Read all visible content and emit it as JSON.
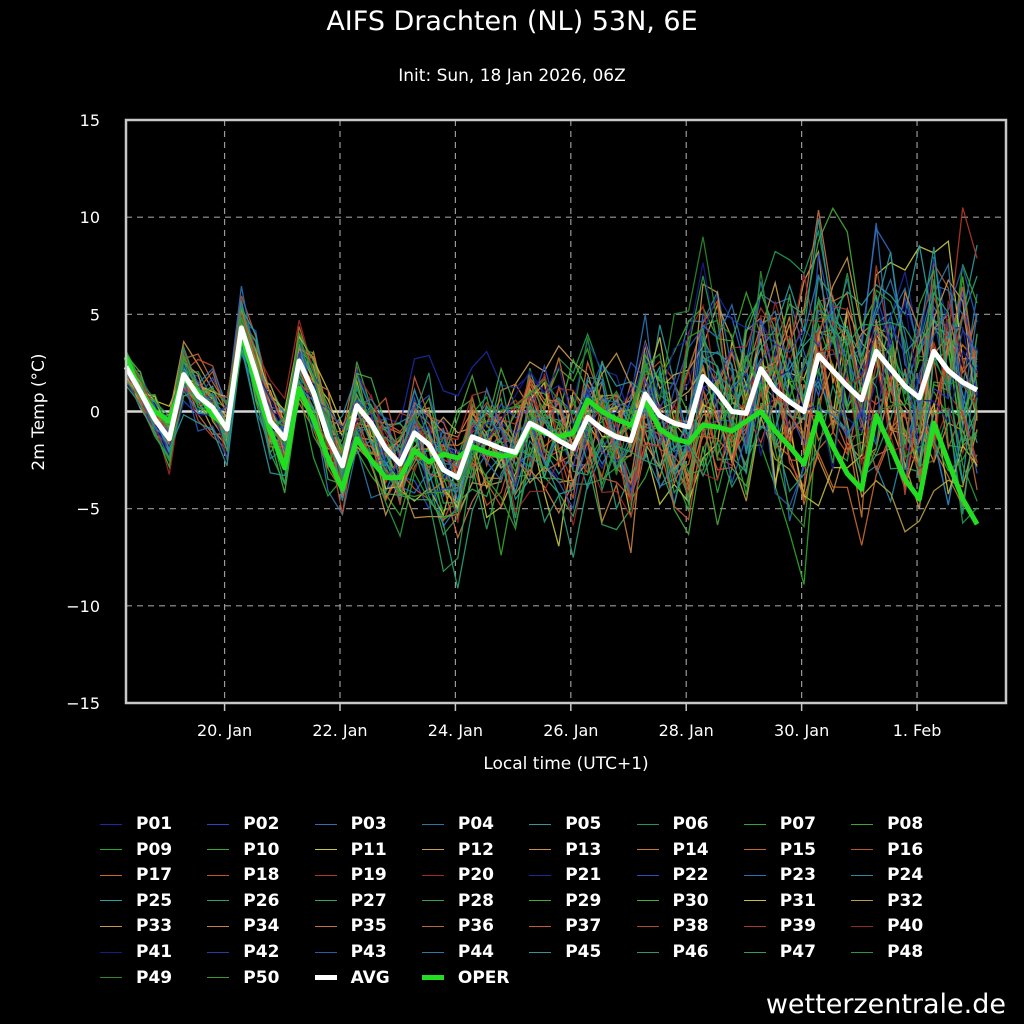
{
  "header": {
    "title": "AIFS Drachten (NL) 53N, 6E",
    "subtitle": "Init: Sun, 18 Jan 2026, 06Z"
  },
  "source": "wetterzentrale.de",
  "chart_data": {
    "type": "line",
    "xlabel": "Local time (UTC+1)",
    "ylabel": "2m Temp (°C)",
    "ylim": [
      -15,
      15
    ],
    "yticks": [
      "15",
      "10",
      "5",
      "0",
      "−5",
      "−10",
      "−15"
    ],
    "x_range_days": [
      "2026-01-18T07:00",
      "2026-02-02T13:00"
    ],
    "xticks": [
      {
        "date": "2026-01-20T00:00",
        "label": "20. Jan"
      },
      {
        "date": "2026-01-22T00:00",
        "label": "22. Jan"
      },
      {
        "date": "2026-01-24T00:00",
        "label": "24. Jan"
      },
      {
        "date": "2026-01-26T00:00",
        "label": "26. Jan"
      },
      {
        "date": "2026-01-28T00:00",
        "label": "28. Jan"
      },
      {
        "date": "2026-01-30T00:00",
        "label": "30. Jan"
      },
      {
        "date": "2026-02-01T00:00",
        "label": "1. Feb"
      }
    ],
    "grid": true,
    "legend_placement": "bottom",
    "step_hours": 6,
    "start": "2026-01-18T07:00",
    "series": [
      {
        "name": "AVG",
        "color": "#ffffff",
        "width": 5,
        "values": [
          2.3,
          1.0,
          -0.4,
          -1.4,
          1.9,
          0.8,
          0.2,
          -0.9,
          4.3,
          2.0,
          -0.5,
          -1.4,
          2.6,
          1.0,
          -1.3,
          -2.8,
          0.3,
          -0.6,
          -1.9,
          -2.7,
          -1.1,
          -1.7,
          -3.0,
          -3.4,
          -1.3,
          -1.6,
          -1.9,
          -2.1,
          -0.6,
          -1.0,
          -1.5,
          -1.9,
          -0.3,
          -0.9,
          -1.3,
          -1.5,
          0.9,
          -0.2,
          -0.6,
          -0.8,
          1.8,
          1.0,
          0.0,
          -0.1,
          2.2,
          1.1,
          0.5,
          0.0,
          2.9,
          2.1,
          1.3,
          0.6,
          3.1,
          2.2,
          1.3,
          0.7,
          3.1,
          2.1,
          1.5,
          1.1
        ]
      },
      {
        "name": "OPER",
        "color": "#22dd22",
        "width": 5,
        "values": [
          2.8,
          1.0,
          0.0,
          -0.5,
          1.7,
          1.0,
          -0.2,
          -0.8,
          4.0,
          1.4,
          -1.0,
          -2.9,
          1.2,
          -0.4,
          -2.4,
          -4.0,
          -1.4,
          -2.5,
          -3.4,
          -3.4,
          -2.0,
          -2.6,
          -2.2,
          -2.4,
          -1.8,
          -2.1,
          -2.3,
          -2.2,
          -0.7,
          -1.1,
          -1.3,
          -1.1,
          0.6,
          0.0,
          -0.4,
          -0.7,
          0.5,
          -0.9,
          -1.4,
          -1.6,
          -0.7,
          -0.8,
          -1.0,
          -0.5,
          0.0,
          -1.0,
          -1.8,
          -2.7,
          -0.1,
          -1.8,
          -3.2,
          -4.0,
          -0.2,
          -1.8,
          -3.5,
          -4.5,
          -0.6,
          -2.6,
          -4.5,
          -5.8
        ]
      }
    ],
    "members": [
      "P01",
      "P02",
      "P03",
      "P04",
      "P05",
      "P06",
      "P07",
      "P08",
      "P09",
      "P10",
      "P11",
      "P12",
      "P13",
      "P14",
      "P15",
      "P16",
      "P17",
      "P18",
      "P19",
      "P20",
      "P21",
      "P22",
      "P23",
      "P24",
      "P25",
      "P26",
      "P27",
      "P28",
      "P29",
      "P30",
      "P31",
      "P32",
      "P33",
      "P34",
      "P35",
      "P36",
      "P37",
      "P38",
      "P39",
      "P40",
      "P41",
      "P42",
      "P43",
      "P44",
      "P45",
      "P46",
      "P47",
      "P48",
      "P49",
      "P50"
    ],
    "member_colors": [
      "#1a2aa8",
      "#2a46c8",
      "#3a68c0",
      "#2a78a8",
      "#2a9a9a",
      "#1e9a58",
      "#2aa83a",
      "#3aa82a",
      "#2aa82a",
      "#3aa838",
      "#c8c840",
      "#c8a050",
      "#c89040",
      "#c87830",
      "#c86830",
      "#b85828",
      "#c86828",
      "#c85030",
      "#b03828",
      "#a02828",
      "#1a2a9a",
      "#2a50c0",
      "#2a70b8",
      "#2a8aa8",
      "#2aa0a0",
      "#2aa078",
      "#30a860",
      "#38a048",
      "#48a838",
      "#40b040",
      "#c8c040",
      "#b8a040",
      "#c89848",
      "#c88040",
      "#c87040",
      "#b86838",
      "#c85838",
      "#b84830",
      "#a83830",
      "#982828",
      "#1a1a88",
      "#2a3aa8",
      "#2a5ab0",
      "#2a7aa8",
      "#2a9898",
      "#2a9a70",
      "#30a058",
      "#2a9a40",
      "#2a8a2a",
      "#3a9a30"
    ]
  },
  "legend": {
    "avg_label": "AVG",
    "oper_label": "OPER"
  }
}
